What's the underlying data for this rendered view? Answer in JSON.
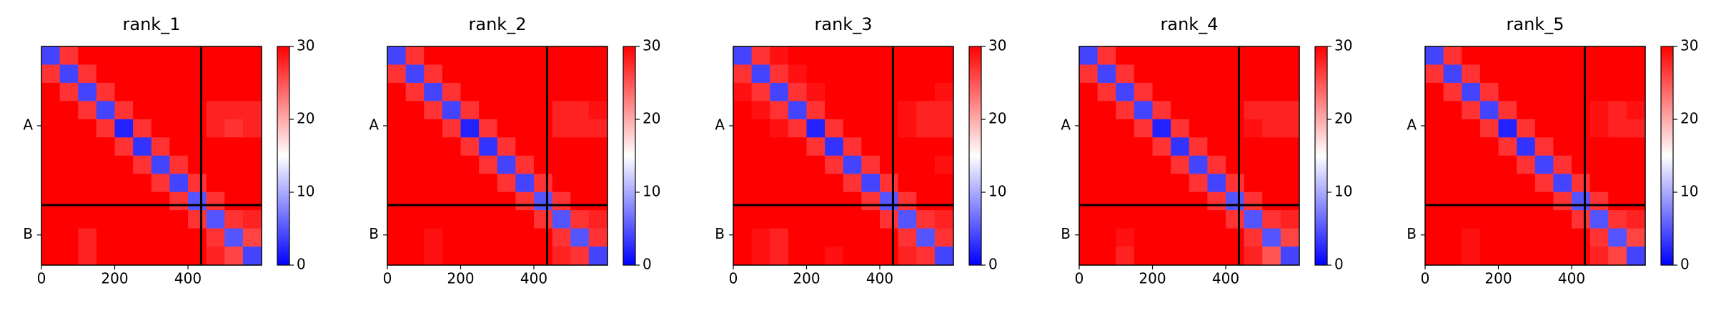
{
  "chart_data": [
    {
      "type": "heatmap",
      "title": "rank_1",
      "cmap": "bwr",
      "bins": [
        0,
        50,
        100,
        150,
        200,
        250,
        300,
        350,
        400,
        450,
        500,
        550,
        601
      ],
      "xlim": [
        0,
        601
      ],
      "ylim": [
        601,
        0
      ],
      "xticks": [
        0,
        200,
        400
      ],
      "yticks": [
        {
          "value": 218,
          "label": "A"
        },
        {
          "value": 518,
          "label": "B"
        }
      ],
      "chain_breaks": [
        436
      ],
      "colorbar": {
        "lim": [
          0,
          30
        ],
        "ticks": [
          0,
          10,
          20,
          30
        ]
      },
      "values": [
        [
          4,
          27,
          30,
          30,
          30,
          30,
          30,
          30,
          30,
          30,
          30,
          30
        ],
        [
          27,
          4,
          27,
          30,
          30,
          30,
          30,
          30,
          30,
          30,
          30,
          30
        ],
        [
          30,
          27,
          4,
          27,
          30,
          30,
          30,
          30,
          30,
          30,
          30,
          30
        ],
        [
          30,
          30,
          27,
          4,
          27,
          30,
          30,
          30,
          30,
          28,
          28,
          28
        ],
        [
          30,
          30,
          30,
          27,
          2,
          27,
          30,
          30,
          30,
          28,
          27,
          28
        ],
        [
          30,
          30,
          30,
          30,
          27,
          3,
          27,
          30,
          30,
          30,
          30,
          30
        ],
        [
          30,
          30,
          30,
          30,
          30,
          27,
          4,
          27,
          30,
          30,
          30,
          30
        ],
        [
          30,
          30,
          30,
          30,
          30,
          30,
          27,
          4,
          27,
          30,
          30,
          30
        ],
        [
          30,
          30,
          30,
          30,
          30,
          30,
          30,
          27,
          5,
          27,
          30,
          30
        ],
        [
          30,
          30,
          30,
          30,
          30,
          30,
          30,
          30,
          27,
          5,
          27,
          28
        ],
        [
          30,
          30,
          28,
          30,
          30,
          30,
          30,
          30,
          30,
          27,
          5,
          26
        ],
        [
          30,
          30,
          28,
          30,
          30,
          30,
          30,
          30,
          30,
          28,
          26,
          4
        ]
      ]
    },
    {
      "type": "heatmap",
      "title": "rank_2",
      "cmap": "bwr",
      "bins": [
        0,
        50,
        100,
        150,
        200,
        250,
        300,
        350,
        400,
        450,
        500,
        550,
        601
      ],
      "xlim": [
        0,
        601
      ],
      "ylim": [
        601,
        0
      ],
      "xticks": [
        0,
        200,
        400
      ],
      "yticks": [
        {
          "value": 218,
          "label": "A"
        },
        {
          "value": 518,
          "label": "B"
        }
      ],
      "chain_breaks": [
        436
      ],
      "colorbar": {
        "lim": [
          0,
          30
        ],
        "ticks": [
          0,
          10,
          20,
          30
        ]
      },
      "values": [
        [
          4,
          27,
          30,
          30,
          30,
          30,
          30,
          30,
          30,
          30,
          30,
          30
        ],
        [
          27,
          4,
          27,
          30,
          30,
          30,
          30,
          30,
          30,
          30,
          30,
          30
        ],
        [
          30,
          27,
          4,
          27,
          30,
          30,
          30,
          30,
          30,
          30,
          30,
          30
        ],
        [
          30,
          30,
          27,
          4,
          27,
          30,
          30,
          30,
          30,
          28,
          28,
          29
        ],
        [
          30,
          30,
          30,
          27,
          2,
          27,
          30,
          30,
          30,
          28,
          28,
          28
        ],
        [
          30,
          30,
          30,
          30,
          27,
          3,
          27,
          30,
          30,
          30,
          30,
          30
        ],
        [
          30,
          30,
          30,
          30,
          30,
          27,
          4,
          27,
          30,
          30,
          30,
          30
        ],
        [
          30,
          30,
          30,
          30,
          30,
          30,
          27,
          4,
          27,
          30,
          30,
          30
        ],
        [
          30,
          30,
          30,
          30,
          30,
          30,
          30,
          27,
          5,
          27,
          30,
          30
        ],
        [
          30,
          30,
          30,
          30,
          30,
          30,
          30,
          30,
          27,
          5,
          27,
          28
        ],
        [
          30,
          30,
          29,
          30,
          30,
          30,
          30,
          30,
          30,
          27,
          5,
          27
        ],
        [
          30,
          30,
          29,
          30,
          30,
          30,
          30,
          30,
          30,
          28,
          27,
          4
        ]
      ]
    },
    {
      "type": "heatmap",
      "title": "rank_3",
      "cmap": "bwr",
      "bins": [
        0,
        50,
        100,
        150,
        200,
        250,
        300,
        350,
        400,
        450,
        500,
        550,
        601
      ],
      "xlim": [
        0,
        601
      ],
      "ylim": [
        601,
        0
      ],
      "xticks": [
        0,
        200,
        400
      ],
      "yticks": [
        {
          "value": 218,
          "label": "A"
        },
        {
          "value": 518,
          "label": "B"
        }
      ],
      "chain_breaks": [
        436
      ],
      "colorbar": {
        "lim": [
          0,
          30
        ],
        "ticks": [
          0,
          10,
          20,
          30
        ]
      },
      "values": [
        [
          4,
          27,
          29,
          30,
          30,
          30,
          30,
          30,
          30,
          30,
          30,
          30
        ],
        [
          27,
          4,
          27,
          29,
          30,
          30,
          30,
          30,
          30,
          30,
          30,
          30
        ],
        [
          29,
          27,
          4,
          27,
          29,
          30,
          30,
          30,
          30,
          30,
          30,
          29
        ],
        [
          30,
          29,
          27,
          4,
          27,
          30,
          30,
          30,
          30,
          29,
          28,
          28
        ],
        [
          30,
          30,
          29,
          27,
          2,
          27,
          30,
          30,
          30,
          29,
          28,
          28
        ],
        [
          30,
          30,
          30,
          30,
          27,
          3,
          27,
          30,
          30,
          30,
          30,
          30
        ],
        [
          30,
          30,
          30,
          30,
          30,
          27,
          4,
          27,
          30,
          30,
          30,
          29
        ],
        [
          30,
          30,
          30,
          30,
          30,
          30,
          27,
          4,
          27,
          30,
          30,
          30
        ],
        [
          30,
          30,
          30,
          30,
          30,
          30,
          30,
          27,
          5,
          27,
          30,
          30
        ],
        [
          30,
          30,
          30,
          30,
          30,
          30,
          30,
          30,
          27,
          5,
          27,
          28
        ],
        [
          30,
          29,
          28,
          30,
          30,
          30,
          30,
          30,
          30,
          27,
          5,
          27
        ],
        [
          30,
          29,
          28,
          30,
          30,
          29,
          30,
          30,
          30,
          28,
          27,
          4
        ]
      ]
    },
    {
      "type": "heatmap",
      "title": "rank_4",
      "cmap": "bwr",
      "bins": [
        0,
        50,
        100,
        150,
        200,
        250,
        300,
        350,
        400,
        450,
        500,
        550,
        601
      ],
      "xlim": [
        0,
        601
      ],
      "ylim": [
        601,
        0
      ],
      "xticks": [
        0,
        200,
        400
      ],
      "yticks": [
        {
          "value": 218,
          "label": "A"
        },
        {
          "value": 518,
          "label": "B"
        }
      ],
      "chain_breaks": [
        436
      ],
      "colorbar": {
        "lim": [
          0,
          30
        ],
        "ticks": [
          0,
          10,
          20,
          30
        ]
      },
      "values": [
        [
          4,
          27,
          30,
          30,
          30,
          30,
          30,
          30,
          30,
          30,
          30,
          30
        ],
        [
          27,
          4,
          27,
          30,
          30,
          30,
          30,
          30,
          30,
          30,
          30,
          30
        ],
        [
          30,
          27,
          4,
          27,
          30,
          30,
          30,
          30,
          30,
          30,
          30,
          30
        ],
        [
          30,
          30,
          27,
          4,
          27,
          30,
          30,
          30,
          30,
          28,
          28,
          28
        ],
        [
          30,
          30,
          30,
          27,
          2,
          27,
          30,
          30,
          30,
          29,
          28,
          28
        ],
        [
          30,
          30,
          30,
          30,
          27,
          3,
          27,
          30,
          30,
          30,
          30,
          30
        ],
        [
          30,
          30,
          30,
          30,
          30,
          27,
          4,
          27,
          30,
          30,
          30,
          30
        ],
        [
          30,
          30,
          30,
          30,
          30,
          30,
          27,
          4,
          27,
          30,
          30,
          30
        ],
        [
          30,
          30,
          30,
          30,
          30,
          30,
          30,
          27,
          5,
          27,
          30,
          30
        ],
        [
          30,
          30,
          30,
          30,
          30,
          30,
          30,
          30,
          27,
          5,
          27,
          28
        ],
        [
          30,
          30,
          29,
          30,
          30,
          30,
          30,
          30,
          30,
          27,
          5,
          26
        ],
        [
          30,
          30,
          28,
          30,
          30,
          30,
          30,
          30,
          30,
          28,
          25,
          4
        ]
      ]
    },
    {
      "type": "heatmap",
      "title": "rank_5",
      "cmap": "bwr",
      "bins": [
        0,
        50,
        100,
        150,
        200,
        250,
        300,
        350,
        400,
        450,
        500,
        550,
        601
      ],
      "xlim": [
        0,
        601
      ],
      "ylim": [
        601,
        0
      ],
      "xticks": [
        0,
        200,
        400
      ],
      "yticks": [
        {
          "value": 218,
          "label": "A"
        },
        {
          "value": 518,
          "label": "B"
        }
      ],
      "chain_breaks": [
        436
      ],
      "colorbar": {
        "lim": [
          0,
          30
        ],
        "ticks": [
          0,
          10,
          20,
          30
        ]
      },
      "values": [
        [
          4,
          27,
          30,
          30,
          30,
          30,
          30,
          30,
          30,
          30,
          30,
          30
        ],
        [
          27,
          4,
          27,
          30,
          30,
          30,
          30,
          30,
          30,
          30,
          30,
          30
        ],
        [
          30,
          27,
          4,
          27,
          30,
          30,
          30,
          30,
          30,
          30,
          30,
          30
        ],
        [
          30,
          30,
          27,
          4,
          27,
          30,
          30,
          30,
          30,
          29,
          28,
          29
        ],
        [
          30,
          30,
          30,
          27,
          2,
          27,
          30,
          30,
          30,
          29,
          28,
          28
        ],
        [
          30,
          30,
          30,
          30,
          27,
          3,
          27,
          30,
          30,
          30,
          30,
          30
        ],
        [
          30,
          30,
          30,
          30,
          30,
          27,
          4,
          27,
          30,
          30,
          30,
          30
        ],
        [
          30,
          30,
          30,
          30,
          30,
          30,
          27,
          4,
          27,
          30,
          30,
          30
        ],
        [
          30,
          30,
          30,
          30,
          30,
          30,
          30,
          27,
          5,
          27,
          30,
          30
        ],
        [
          30,
          30,
          30,
          30,
          30,
          30,
          30,
          30,
          27,
          5,
          27,
          28
        ],
        [
          30,
          30,
          29,
          30,
          30,
          30,
          30,
          30,
          30,
          27,
          5,
          26
        ],
        [
          30,
          30,
          29,
          30,
          30,
          30,
          30,
          30,
          30,
          28,
          26,
          4
        ]
      ]
    }
  ]
}
